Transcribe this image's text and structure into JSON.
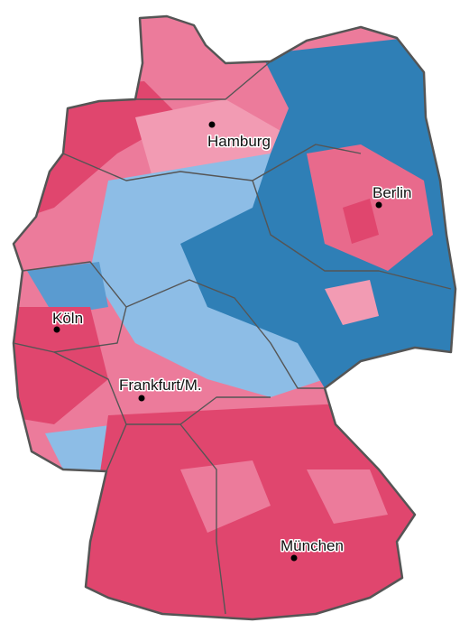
{
  "map": {
    "cities": [
      {
        "label": "Hamburg"
      },
      {
        "label": "Berlin"
      },
      {
        "label": "Köln"
      },
      {
        "label": "Frankfurt/M."
      },
      {
        "label": "München"
      }
    ]
  }
}
